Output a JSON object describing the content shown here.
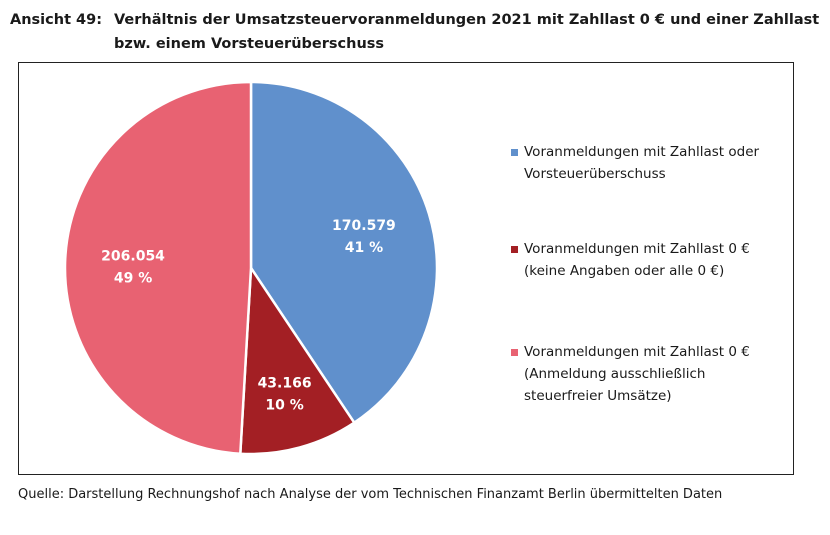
{
  "header": {
    "label": "Ansicht 49:",
    "title_line1": "Verhältnis der Umsatzsteuervoranmeldungen 2021 mit Zahllast 0 € und einer Zahllast",
    "title_line2": "bzw. einem Vorsteuerüberschuss"
  },
  "chart_data": {
    "type": "pie",
    "slices": [
      {
        "value": 170579,
        "value_label": "170.579",
        "percent_label": "41 %",
        "color": "#6090cc",
        "legend": "Voranmeldungen mit Zahllast oder\nVorsteuerüberschuss"
      },
      {
        "value": 43166,
        "value_label": "43.166",
        "percent_label": "10 %",
        "color": "#a31f24",
        "legend": "Voranmeldungen mit Zahllast 0 €\n(keine Angaben oder alle 0 €)"
      },
      {
        "value": 206054,
        "value_label": "206.054",
        "percent_label": "49 %",
        "color": "#e86272",
        "legend": "Voranmeldungen mit Zahllast 0 €\n(Anmeldung ausschließlich\nsteuerfreier Umsätze)"
      }
    ],
    "legend_position": "right"
  },
  "footer": {
    "source": "Quelle: Darstellung Rechnungshof nach Analyse der vom Technischen Finanzamt Berlin übermittelten Daten"
  }
}
